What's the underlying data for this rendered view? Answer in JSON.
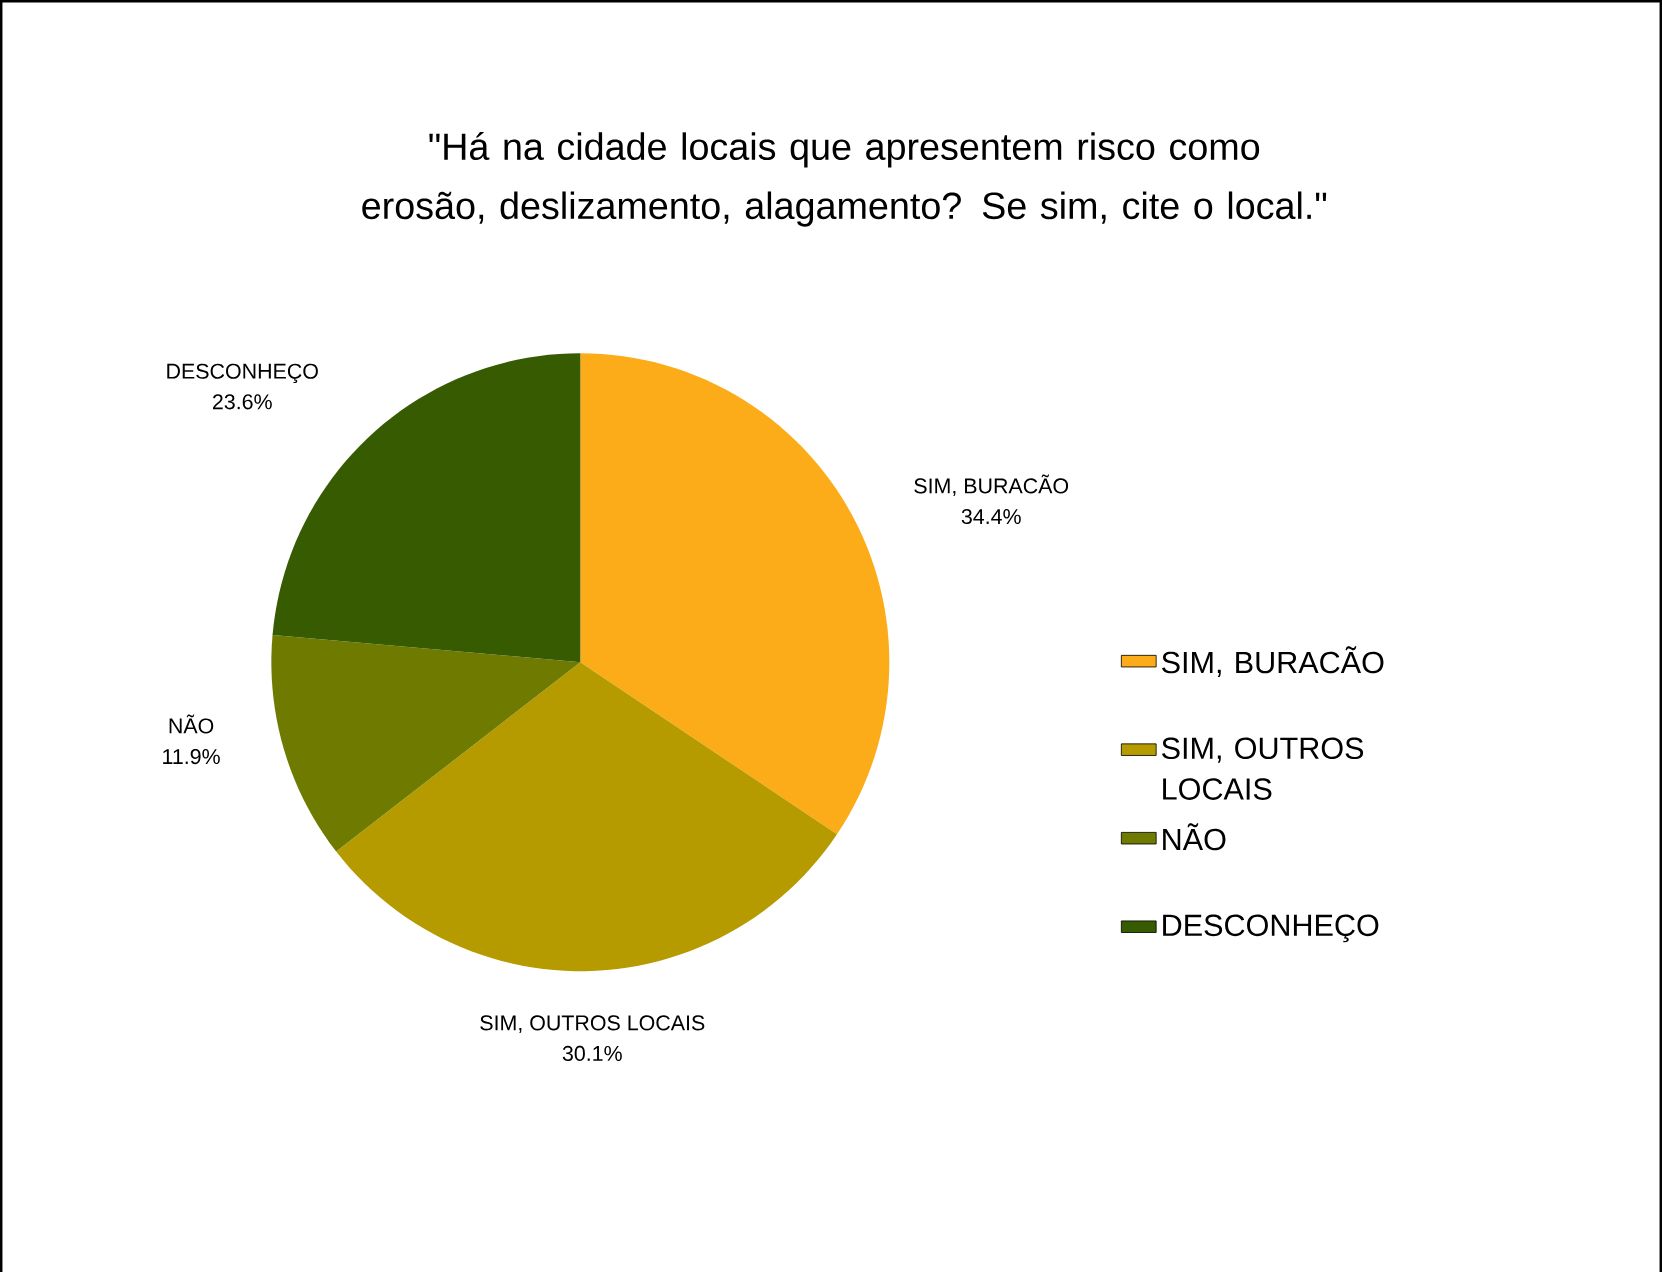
{
  "chart_data": {
    "type": "pie",
    "title": "\"Há na cidade locais que apresentem risco como erosão, deslizamento, alagamento? Se sim, cite o local.\"",
    "categories": [
      "SIM, BURACÃO",
      "SIM, OUTROS LOCAIS",
      "NÃO",
      "DESCONHEÇO"
    ],
    "values": [
      34.4,
      30.1,
      11.9,
      23.6
    ],
    "value_labels": [
      "34.4%",
      "30.1%",
      "11.9%",
      "23.6%"
    ],
    "colors": [
      "#fbac18",
      "#b59b00",
      "#6f7a00",
      "#365b00"
    ],
    "legend": "right"
  }
}
